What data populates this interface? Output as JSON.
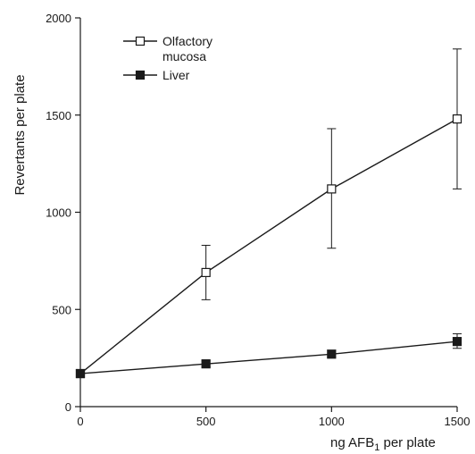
{
  "chart_data": {
    "type": "line",
    "title": "",
    "xlabel": "ng AFB",
    "xlabel_subscript": "1",
    "xlabel_suffix": " per plate",
    "ylabel": "Revertants per plate",
    "xlim": [
      0,
      1500
    ],
    "ylim": [
      0,
      2000
    ],
    "x_ticks": [
      0,
      500,
      1000,
      1500
    ],
    "x_tick_labels": [
      "0",
      "500",
      "1000",
      "1500"
    ],
    "y_ticks": [
      0,
      500,
      1000,
      1500,
      2000
    ],
    "y_tick_labels": [
      "0",
      "500",
      "1000",
      "1500",
      "2000"
    ],
    "grid": false,
    "legend_position": "top-left",
    "x": [
      0,
      500,
      1000,
      1500
    ],
    "series": [
      {
        "name": "Olfactory mucosa",
        "legend_lines": [
          "Olfactory",
          "mucosa"
        ],
        "marker": "open-square",
        "values": [
          170,
          690,
          1120,
          1480
        ],
        "error_low": [
          150,
          550,
          815,
          1120
        ],
        "error_high": [
          180,
          830,
          1430,
          1840
        ]
      },
      {
        "name": "Liver",
        "legend_lines": [
          "Liver"
        ],
        "marker": "filled-square",
        "values": [
          170,
          220,
          270,
          335
        ],
        "error_low": [
          150,
          205,
          255,
          300
        ],
        "error_high": [
          180,
          235,
          290,
          375
        ]
      }
    ],
    "colors": {
      "line": "#1a1a1a",
      "background": "#ffffff"
    }
  }
}
